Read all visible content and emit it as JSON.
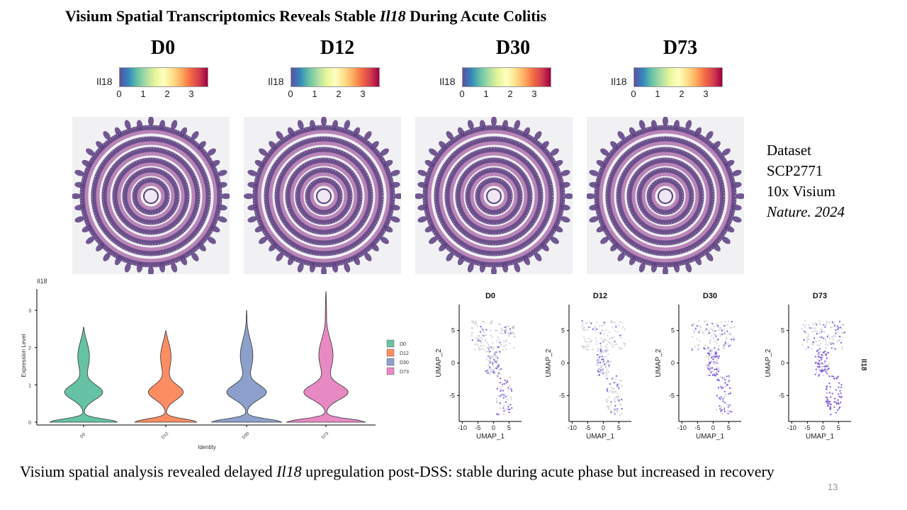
{
  "slide": {
    "title_pre": "Visium Spatial Transcriptomics Reveals Stable ",
    "title_gene": "Il18",
    "title_post": " During Acute Colitis",
    "page_number": "13"
  },
  "panels": [
    {
      "day": "D0",
      "colorbar_label": "Il18",
      "ticks": [
        "0",
        "1",
        "2",
        "3"
      ]
    },
    {
      "day": "D12",
      "colorbar_label": "Il18",
      "ticks": [
        "0",
        "1",
        "2",
        "3"
      ]
    },
    {
      "day": "D30",
      "colorbar_label": "Il18",
      "ticks": [
        "0",
        "1",
        "2",
        "3"
      ]
    },
    {
      "day": "D73",
      "colorbar_label": "Il18",
      "ticks": [
        "0",
        "1",
        "2",
        "3"
      ]
    }
  ],
  "dataset": {
    "line1": "Dataset",
    "line2": "SCP2771",
    "line3": "10x Visium",
    "line4": "Nature. 2024"
  },
  "caption": {
    "pre": "Visium spatial analysis revealed delayed ",
    "gene": "Il18",
    "post": " upregulation post-DSS: stable during acute phase but increased in recovery"
  },
  "colors": {
    "D0": "#66c2a5",
    "D12": "#fc8d62",
    "D30": "#8da0cb",
    "D73": "#e78ac3",
    "tissue_pink": "#b985b8",
    "tissue_purple": "#5b3d7f",
    "umap_grey": "#cfcfd8",
    "umap_purple": "#7a4fe0"
  },
  "chart_data": [
    {
      "type": "violin",
      "title": "Il18",
      "xlabel": "Identity",
      "ylabel": "Expression Level",
      "categories": [
        "D0",
        "D12",
        "D30",
        "D73"
      ],
      "max_values": [
        2.55,
        2.45,
        3.0,
        3.5
      ],
      "density_peaks": [
        [
          0.05,
          0.8
        ],
        [
          0.05,
          0.8
        ],
        [
          0.05,
          0.8
        ],
        [
          0.05,
          0.75
        ]
      ],
      "ylim": [
        0,
        3.5
      ],
      "yticks": [
        "0",
        "1",
        "2",
        "3"
      ],
      "legend": [
        "D0",
        "D12",
        "D30",
        "D73"
      ],
      "legend_position": "right"
    },
    {
      "type": "scatter",
      "panels": [
        "D0",
        "D12",
        "D30",
        "D73"
      ],
      "xlabel": "UMAP_1",
      "ylabel": "UMAP_2",
      "xticks": [
        "-10",
        "-5",
        "0",
        "5"
      ],
      "yticks": [
        "-5",
        "0",
        "5"
      ],
      "xlim": [
        -11,
        9
      ],
      "ylim": [
        -9,
        9
      ],
      "color_label": "Il18"
    }
  ]
}
